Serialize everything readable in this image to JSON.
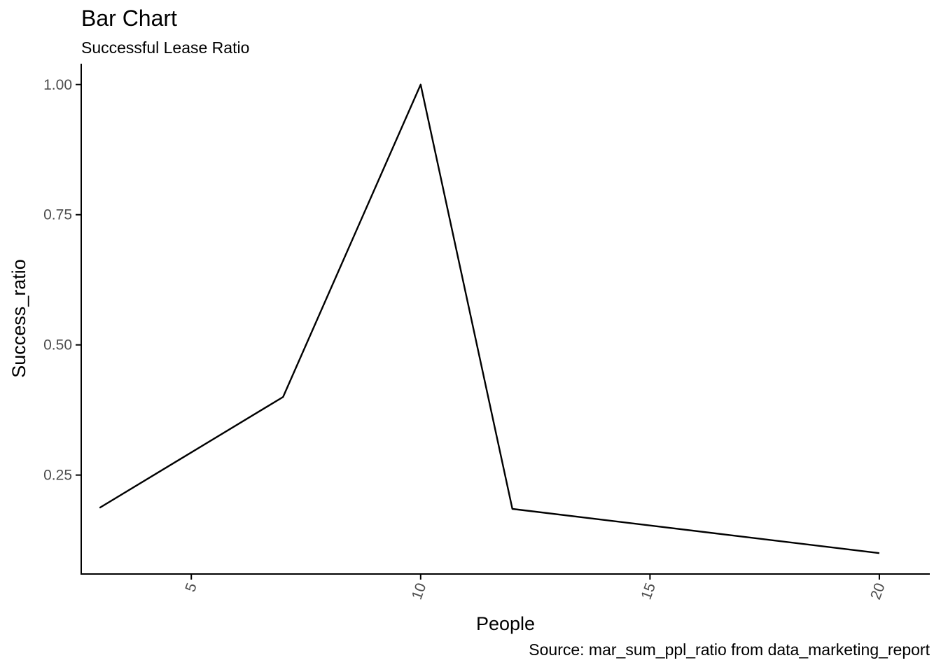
{
  "chart_data": {
    "type": "line",
    "title": "Bar Chart",
    "subtitle": "Successful Lease Ratio",
    "caption": "Source: mar_sum_ppl_ratio from data_marketing_report",
    "xlabel": "People",
    "ylabel": "Success_ratio",
    "x": [
      3,
      7,
      10,
      12,
      20
    ],
    "series": [
      {
        "values": [
          0.187,
          0.4,
          1.0,
          0.185,
          0.1
        ]
      }
    ],
    "xlim": [
      2.6,
      21.1
    ],
    "ylim": [
      0.06,
      1.04
    ],
    "x_ticks": [
      {
        "value": 5,
        "label": "5"
      },
      {
        "value": 10,
        "label": "10"
      },
      {
        "value": 15,
        "label": "15"
      },
      {
        "value": 20,
        "label": "20"
      }
    ],
    "y_ticks": [
      {
        "value": 0.25,
        "label": "0.25"
      },
      {
        "value": 0.5,
        "label": "0.50"
      },
      {
        "value": 0.75,
        "label": "0.75"
      },
      {
        "value": 1.0,
        "label": "1.00"
      }
    ],
    "grid": false,
    "colors": {
      "line": "#000000",
      "axis": "#000000",
      "tick_text": "#4d4d4d"
    }
  }
}
